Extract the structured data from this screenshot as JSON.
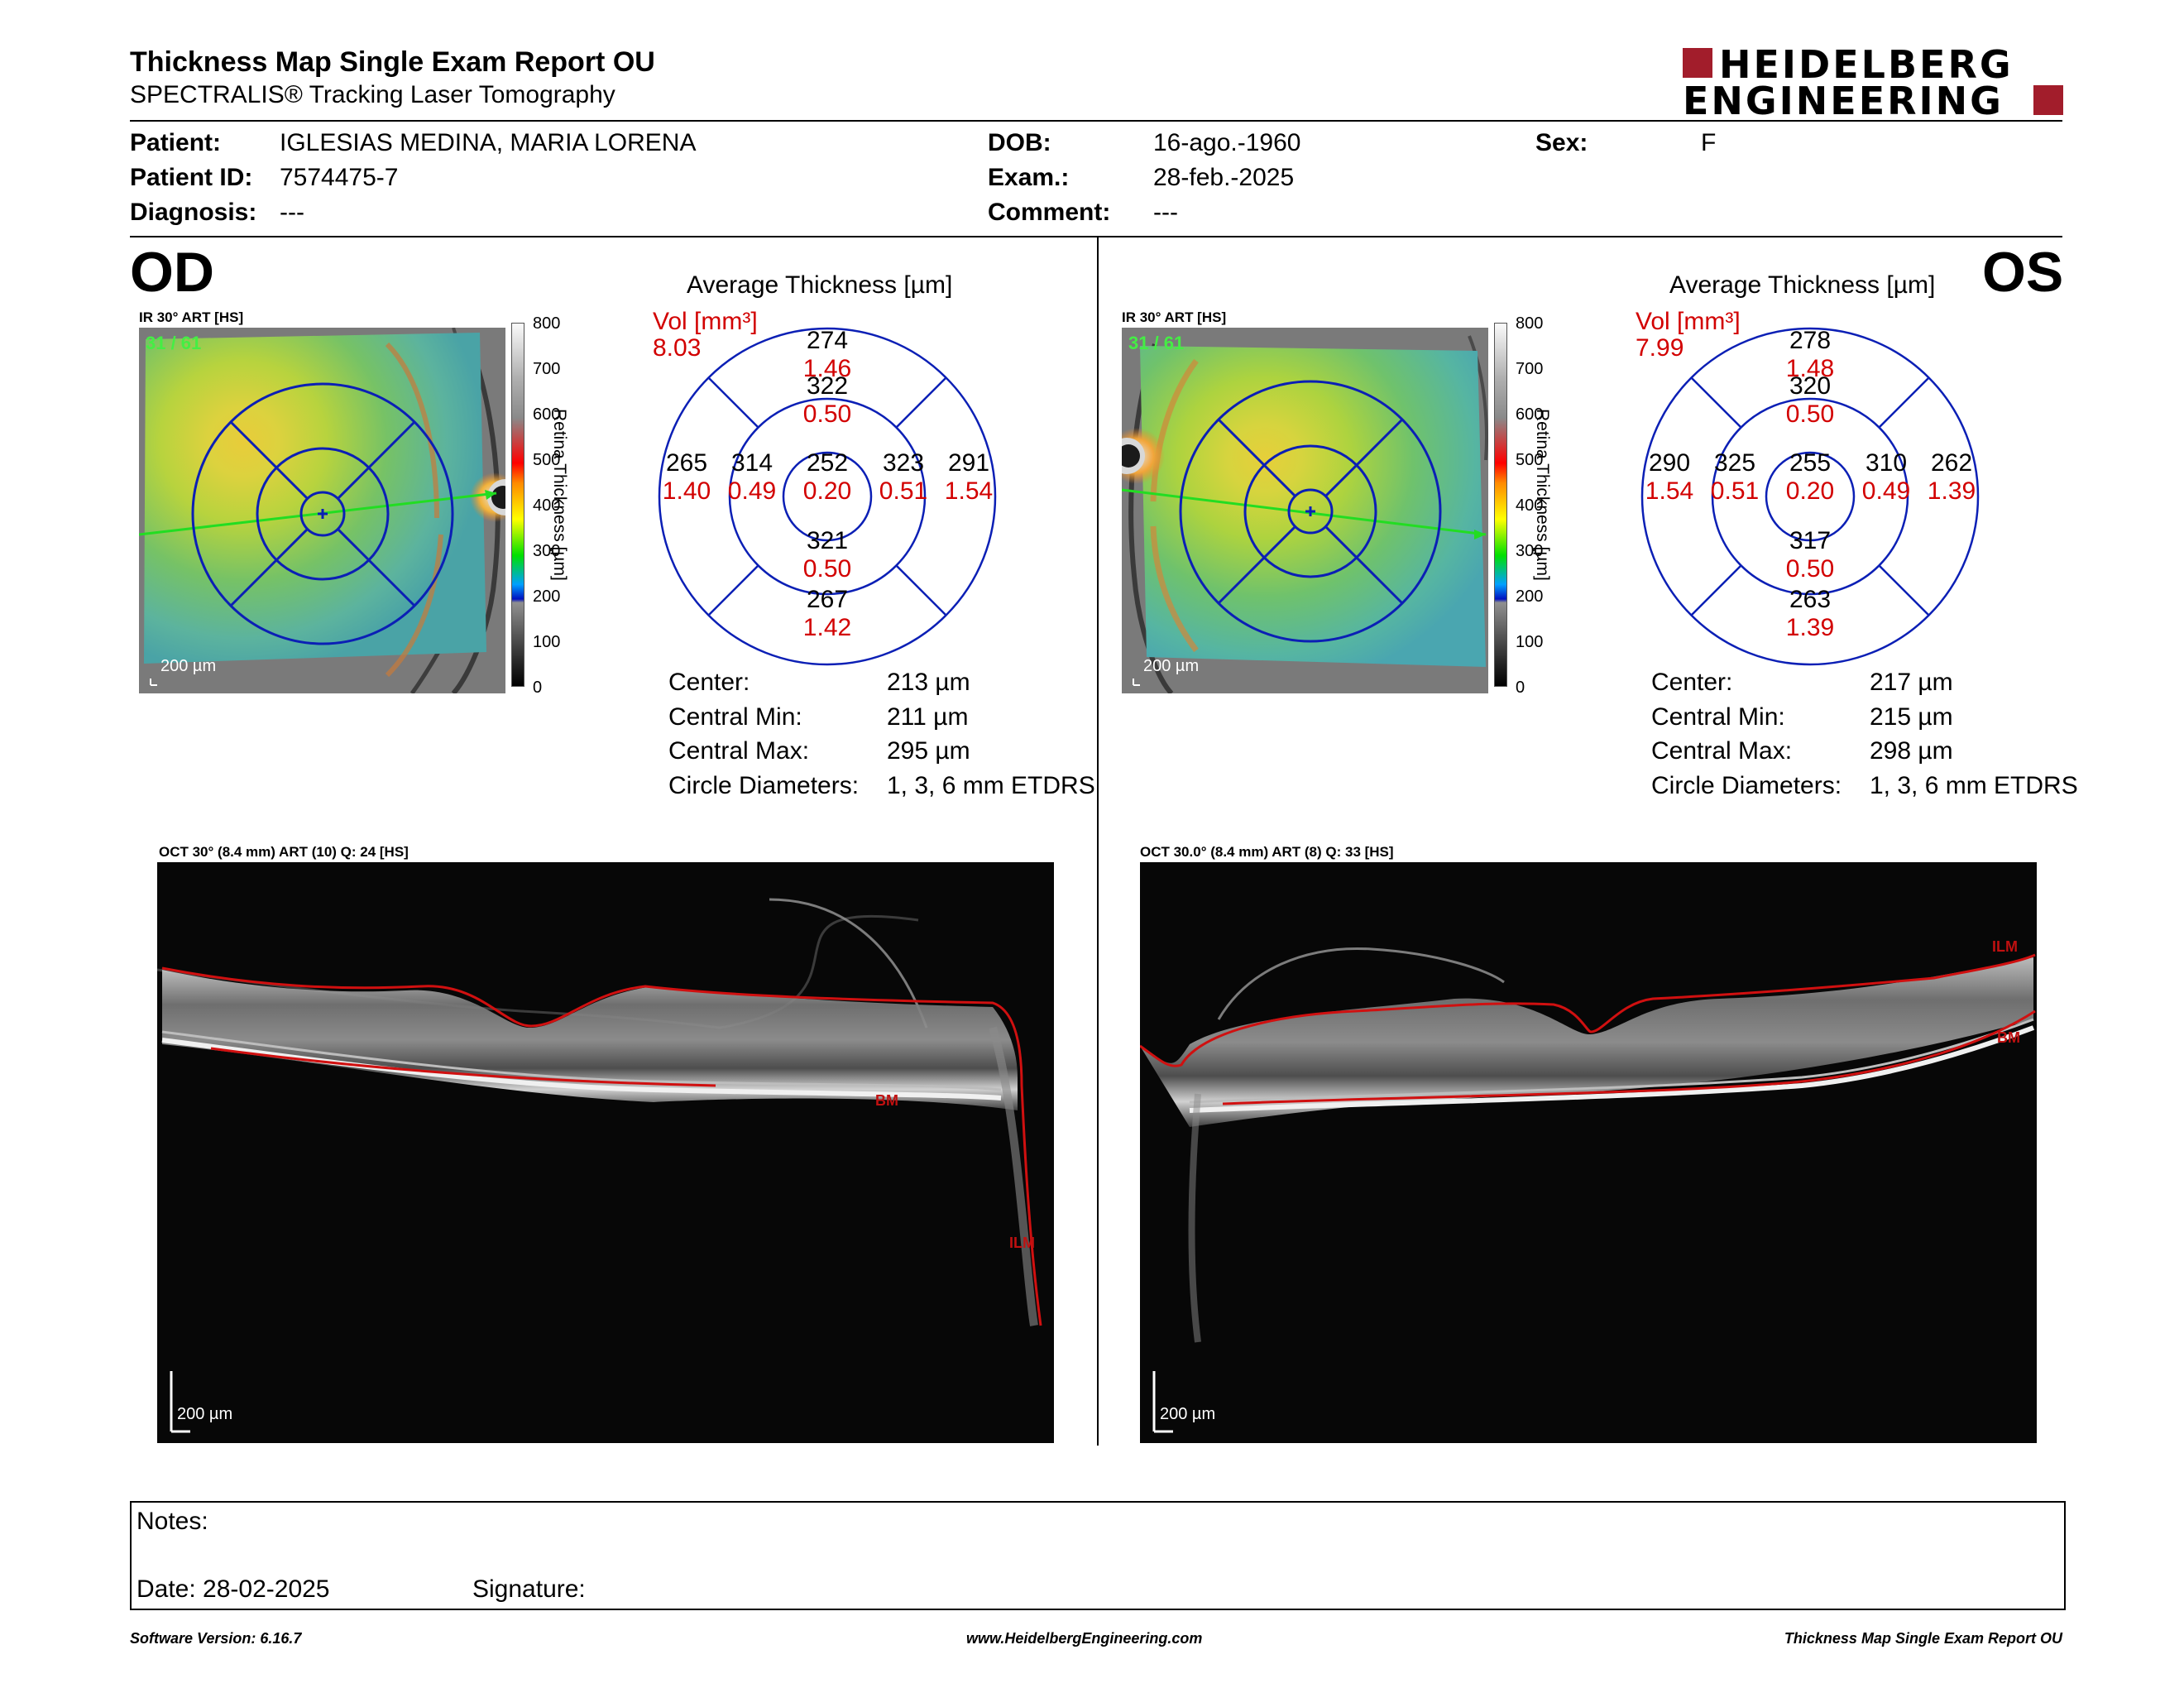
{
  "header": {
    "title": "Thickness Map Single Exam Report OU",
    "subtitle": "SPECTRALIS® Tracking Laser Tomography",
    "logo_line1": "HEIDELBERG",
    "logo_line2": "ENGINEERING"
  },
  "patient": {
    "patient_label": "Patient:",
    "patient_value": "IGLESIAS MEDINA, MARIA LORENA",
    "id_label": "Patient ID:",
    "id_value": "7574475-7",
    "diagnosis_label": "Diagnosis:",
    "diagnosis_value": "---",
    "dob_label": "DOB:",
    "dob_value": "16-ago.-1960",
    "exam_label": "Exam.:",
    "exam_value": "28-feb.-2025",
    "comment_label": "Comment:",
    "comment_value": "---",
    "sex_label": "Sex:",
    "sex_value": "F"
  },
  "colorbar": {
    "ticks": [
      "800",
      "700",
      "600",
      "500",
      "400",
      "300",
      "200",
      "100",
      "0"
    ],
    "title": "Retina Thickness [µm]"
  },
  "od": {
    "eye": "OD",
    "ir_label": "IR 30° ART [HS]",
    "frame": "31 / 61",
    "scale": "200 µm",
    "avg_title": "Average Thickness [µm]",
    "vol_label": "Vol [mm³]",
    "vol_value": "8.03",
    "grid": {
      "center": [
        "252",
        "0.20"
      ],
      "inner_sup": [
        "322",
        "0.50"
      ],
      "inner_inf": [
        "321",
        "0.50"
      ],
      "inner_left": [
        "314",
        "0.49"
      ],
      "inner_right": [
        "323",
        "0.51"
      ],
      "outer_sup": [
        "274",
        "1.46"
      ],
      "outer_inf": [
        "267",
        "1.42"
      ],
      "outer_left": [
        "265",
        "1.40"
      ],
      "outer_right": [
        "291",
        "1.54"
      ]
    },
    "stats": [
      {
        "label": "Center:",
        "value": "213 µm"
      },
      {
        "label": "Central Min:",
        "value": "211 µm"
      },
      {
        "label": "Central Max:",
        "value": "295 µm"
      },
      {
        "label": "Circle Diameters:",
        "value": "1, 3, 6 mm ETDRS"
      }
    ],
    "oct_label": "OCT 30° (8.4 mm) ART (10) Q: 24 [HS]",
    "oct_scale": "200 µm",
    "tag_ilm": "ILM",
    "tag_bm": "BM"
  },
  "os": {
    "eye": "OS",
    "ir_label": "IR 30° ART [HS]",
    "frame": "31 / 61",
    "scale": "200 µm",
    "avg_title": "Average Thickness [µm]",
    "vol_label": "Vol [mm³]",
    "vol_value": "7.99",
    "grid": {
      "center": [
        "255",
        "0.20"
      ],
      "inner_sup": [
        "320",
        "0.50"
      ],
      "inner_inf": [
        "317",
        "0.50"
      ],
      "inner_left": [
        "325",
        "0.51"
      ],
      "inner_right": [
        "310",
        "0.49"
      ],
      "outer_sup": [
        "278",
        "1.48"
      ],
      "outer_inf": [
        "263",
        "1.39"
      ],
      "outer_left": [
        "290",
        "1.54"
      ],
      "outer_right": [
        "262",
        "1.39"
      ]
    },
    "stats": [
      {
        "label": "Center:",
        "value": "217 µm"
      },
      {
        "label": "Central Min:",
        "value": "215 µm"
      },
      {
        "label": "Central Max:",
        "value": "298 µm"
      },
      {
        "label": "Circle Diameters:",
        "value": "1, 3, 6 mm ETDRS"
      }
    ],
    "oct_label": "OCT 30.0° (8.4 mm) ART (8) Q: 33 [HS]",
    "oct_scale": "200 µm",
    "tag_ilm": "ILM",
    "tag_bm": "BM"
  },
  "notes": {
    "notes_label": "Notes:",
    "date_label": "Date: 28-02-2025",
    "signature_label": "Signature:"
  },
  "footer": {
    "software": "Software Version: 6.16.7",
    "website": "www.HeidelbergEngineering.com",
    "report": "Thickness Map Single Exam Report OU"
  },
  "colors": {
    "logo_red": "#a21d2b",
    "grid_blue": "#0b1fb5",
    "volume_red": "#d20000",
    "segment_red": "#d01010",
    "scan_green": "#22dd22"
  }
}
